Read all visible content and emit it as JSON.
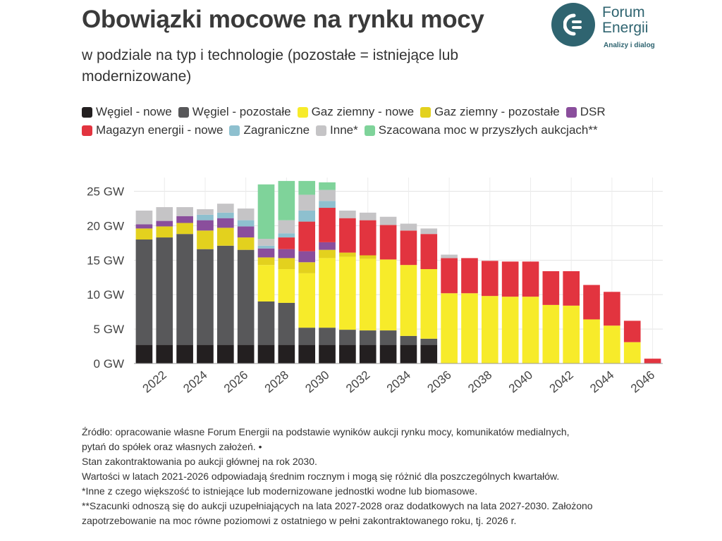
{
  "title": "Obowiązki mocowe na rynku mocy",
  "subtitle": "w podziale na typ i technologie (pozostałe = istniejące lub modernizowane)",
  "logo": {
    "name_line1": "Forum",
    "name_line2": "Energii",
    "tagline": "Analizy i dialog",
    "color": "#2f6470"
  },
  "notes": [
    "Źródło: opracowanie własne Forum Energii na podstawie wyników aukcji rynku mocy, komunikatów medialnych,",
    "pytań do spółek oraz własnych założeń. •",
    "Stan zakontraktowania po aukcji głównej na rok 2030.",
    "Wartości w latach 2021-2026 odpowiadają średnim rocznym i mogą się różnić dla poszczególnych kwartałów.",
    "*Inne z czego większość to istniejące lub modernizowane jednostki wodne lub biomasowe.",
    "**Szacunki odnoszą się do aukcji uzupełniających na lata 2027-2028 oraz dodatkowych na lata 2027-2030. Założono",
    "zapotrzebowanie na moc równe poziomowi z ostatniego w pełni zakontraktowanego roku, tj. 2026 r."
  ],
  "chart_data": {
    "type": "bar",
    "stacked": true,
    "x": [
      2021,
      2022,
      2023,
      2024,
      2025,
      2026,
      2027,
      2028,
      2029,
      2030,
      2031,
      2032,
      2033,
      2034,
      2035,
      2036,
      2037,
      2038,
      2039,
      2040,
      2041,
      2042,
      2043,
      2044,
      2045,
      2046
    ],
    "tick_labels": [
      "2022",
      "2024",
      "2026",
      "2028",
      "2030",
      "2032",
      "2034",
      "2036",
      "2038",
      "2040",
      "2042",
      "2044",
      "2046"
    ],
    "tick_values": [
      2022,
      2024,
      2026,
      2028,
      2030,
      2032,
      2034,
      2036,
      2038,
      2040,
      2042,
      2044,
      2046
    ],
    "y_ticks": [
      {
        "value": 0,
        "label": "0 GW"
      },
      {
        "value": 5,
        "label": "5 GW"
      },
      {
        "value": 10,
        "label": "10 GW"
      },
      {
        "value": 15,
        "label": "15 GW"
      },
      {
        "value": 20,
        "label": "20 GW"
      },
      {
        "value": 25,
        "label": "25 GW"
      }
    ],
    "ylim": [
      0,
      27
    ],
    "grid": true,
    "legend_position": "top",
    "series": [
      {
        "name": "Węgiel - nowe",
        "color": "#231f20",
        "values": [
          2.7,
          2.7,
          2.7,
          2.7,
          2.7,
          2.7,
          2.7,
          2.7,
          2.7,
          2.7,
          2.7,
          2.7,
          2.7,
          2.7,
          2.7,
          0,
          0,
          0,
          0,
          0,
          0,
          0,
          0,
          0,
          0,
          0
        ]
      },
      {
        "name": "Węgiel - pozostałe",
        "color": "#58585a",
        "values": [
          15.3,
          15.6,
          16.1,
          13.9,
          14.4,
          13.8,
          6.3,
          6.1,
          2.5,
          2.5,
          2.2,
          2.1,
          2.1,
          1.3,
          0.9,
          0,
          0,
          0,
          0,
          0,
          0,
          0,
          0,
          0,
          0,
          0
        ]
      },
      {
        "name": "Gaz ziemny - nowe",
        "color": "#f7eb2a",
        "values": [
          0,
          0,
          0,
          0,
          0,
          0,
          5.3,
          4.9,
          7.9,
          10.1,
          10.6,
          10.4,
          10.3,
          10.3,
          10.1,
          10.2,
          10.2,
          9.8,
          9.7,
          9.7,
          8.5,
          8.4,
          6.4,
          5.5,
          3.1,
          0
        ]
      },
      {
        "name": "Gaz ziemny - pozostałe",
        "color": "#e3d11e",
        "values": [
          1.6,
          1.6,
          1.6,
          2.7,
          2.6,
          1.8,
          1.1,
          1.6,
          1.6,
          1.2,
          0.6,
          0.5,
          0,
          0,
          0,
          0,
          0,
          0,
          0,
          0,
          0,
          0,
          0,
          0,
          0,
          0
        ]
      },
      {
        "name": "DSR",
        "color": "#8a4e9c",
        "values": [
          0.6,
          0.8,
          1.0,
          1.5,
          1.4,
          1.6,
          1.3,
          1.3,
          1.6,
          1.1,
          0,
          0,
          0,
          0,
          0,
          0,
          0,
          0,
          0,
          0,
          0,
          0,
          0,
          0,
          0,
          0
        ]
      },
      {
        "name": "Magazyn energii - nowe",
        "color": "#e2343f",
        "values": [
          0,
          0,
          0,
          0,
          0,
          0,
          0,
          1.7,
          4.3,
          5.0,
          5.0,
          5.1,
          5.0,
          5.0,
          5.1,
          5.1,
          5.1,
          5.1,
          5.1,
          5.1,
          4.9,
          5.0,
          5.0,
          4.9,
          3.1,
          0.7
        ]
      },
      {
        "name": "Zagraniczne",
        "color": "#8ec0cf",
        "values": [
          0,
          0,
          0,
          0.8,
          0.8,
          0.9,
          0.4,
          0.6,
          1.6,
          1.0,
          0,
          0,
          0,
          0,
          0,
          0,
          0,
          0,
          0,
          0,
          0,
          0,
          0,
          0,
          0,
          0
        ]
      },
      {
        "name": "Inne*",
        "color": "#c5c4c6",
        "values": [
          2.0,
          2.0,
          1.3,
          0.8,
          1.3,
          1.7,
          1.0,
          1.9,
          2.3,
          1.6,
          1.1,
          1.1,
          1.2,
          1.0,
          0.8,
          0.5,
          0,
          0,
          0,
          0,
          0,
          0,
          0,
          0,
          0,
          0
        ]
      },
      {
        "name": "Szacowana moc w przyszłych aukcjach**",
        "color": "#7fd39a",
        "values": [
          0,
          0,
          0,
          0,
          0,
          0,
          7.9,
          5.7,
          2.0,
          1.1,
          0,
          0,
          0,
          0,
          0,
          0,
          0,
          0,
          0,
          0,
          0,
          0,
          0,
          0,
          0,
          0
        ]
      }
    ]
  }
}
